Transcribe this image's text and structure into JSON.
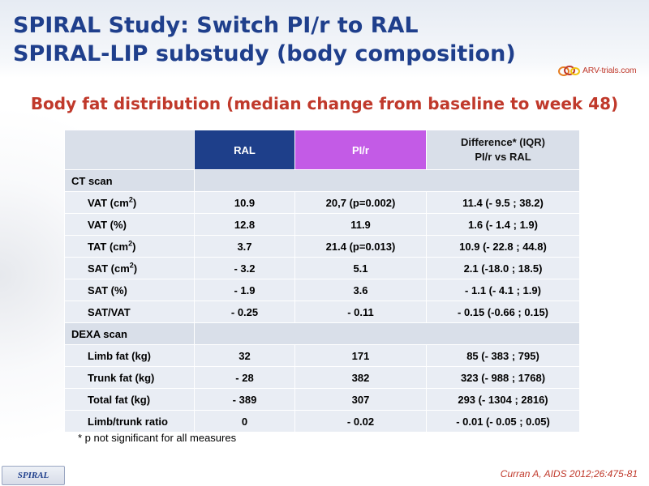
{
  "title": {
    "line1": "SPIRAL Study: Switch PI/r to RAL",
    "line2": "SPIRAL-LIP substudy (body composition)"
  },
  "logo": {
    "text": "ARV-trials.com",
    "icon": "arv-logo-icon"
  },
  "subtitle": "Body fat distribution (median change from baseline to week 48)",
  "table": {
    "headers": {
      "ral": "RAL",
      "pir": "PI/r",
      "diff_line1": "Difference* (IQR)",
      "diff_line2": "PI/r vs RAL"
    },
    "ct_section": "CT scan",
    "ct_rows": [
      {
        "label": "VAT (cm",
        "sup": "2",
        "label_end": ")",
        "ral": "10.9",
        "pir": "20,7 (p=0.002)",
        "diff": "11.4 (- 9.5 ; 38.2)"
      },
      {
        "label": "VAT (%)",
        "sup": "",
        "label_end": "",
        "ral": "12.8",
        "pir": "11.9",
        "diff": "1.6 (- 1.4 ; 1.9)"
      },
      {
        "label": "TAT (cm",
        "sup": "2",
        "label_end": ")",
        "ral": "3.7",
        "pir": "21.4 (p=0.013)",
        "diff": "10.9 (- 22.8 ; 44.8)"
      },
      {
        "label": "SAT (cm",
        "sup": "2",
        "label_end": ")",
        "ral": "- 3.2",
        "pir": "5.1",
        "diff": "2.1 (-18.0 ; 18.5)"
      },
      {
        "label": "SAT (%)",
        "sup": "",
        "label_end": "",
        "ral": "- 1.9",
        "pir": "3.6",
        "diff": "- 1.1 (- 4.1 ; 1.9)"
      },
      {
        "label": "SAT/VAT",
        "sup": "",
        "label_end": "",
        "ral": "- 0.25",
        "pir": "- 0.11",
        "diff": "- 0.15 (-0.66 ; 0.15)"
      }
    ],
    "dexa_section": "DEXA scan",
    "dexa_rows": [
      {
        "label": "Limb fat (kg)",
        "ral": "32",
        "pir": "171",
        "diff": "85 (- 383 ; 795)"
      },
      {
        "label": "Trunk fat (kg)",
        "ral": "- 28",
        "pir": "382",
        "diff": "323 (- 988 ; 1768)"
      },
      {
        "label": "Total fat (kg)",
        "ral": "- 389",
        "pir": "307",
        "diff": "293 (- 1304 ; 2816)"
      },
      {
        "label": "Limb/trunk ratio",
        "ral": "0",
        "pir": "- 0.02",
        "diff": "- 0.01 (- 0.05 ; 0.05)"
      }
    ]
  },
  "footnote": "* p not significant for all measures",
  "tag": "SPIRAL",
  "citation": "Curran A, AIDS 2012;26:475-81",
  "colors": {
    "title": "#1f3f8c",
    "accent_red": "#c0392b",
    "ral_header": "#1e3f8a",
    "pir_header": "#c35be6",
    "cell_light": "#e9edf4",
    "cell_section": "#d9dfe9"
  }
}
